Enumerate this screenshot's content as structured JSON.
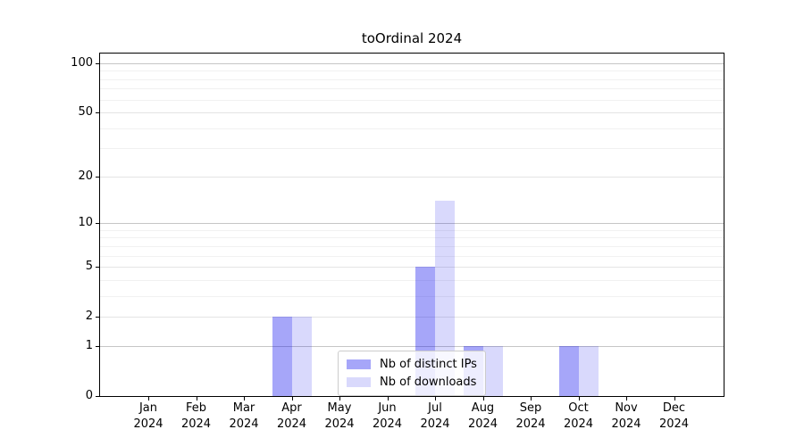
{
  "chart_data": {
    "type": "bar",
    "title": "toOrdinal 2024",
    "categories": [
      "Jan",
      "Feb",
      "Mar",
      "Apr",
      "May",
      "Jun",
      "Jul",
      "Aug",
      "Sep",
      "Oct",
      "Nov",
      "Dec"
    ],
    "year_label": "2024",
    "series": [
      {
        "name": "Nb of distinct IPs",
        "color": "rgba(0,0,238,0.35)",
        "values": [
          0,
          0,
          0,
          2,
          0,
          0,
          5,
          1,
          0,
          1,
          0,
          0
        ]
      },
      {
        "name": "Nb of downloads",
        "color": "rgba(0,0,238,0.15)",
        "values": [
          0,
          0,
          0,
          2,
          0,
          0,
          14,
          1,
          0,
          1,
          0,
          0
        ]
      }
    ],
    "yscale": "log1p",
    "ylim": [
      0,
      100
    ],
    "ytick_labels": [
      0,
      1,
      2,
      5,
      10,
      20,
      50,
      100
    ],
    "gridlines_strong": [
      1,
      10,
      100
    ],
    "gridlines_mid": [
      2,
      5,
      20,
      50
    ],
    "gridlines_minor": [
      3,
      4,
      6,
      7,
      8,
      9,
      30,
      40,
      60,
      70,
      80,
      90
    ],
    "grid": true,
    "legend_position": "bottom-center"
  },
  "colors": {
    "grid_strong": "#c6c6c6",
    "grid_mid": "#e4e4e4",
    "grid_minor": "#f1f1f1",
    "axis": "#000000",
    "legend_border": "#cccccc",
    "legend_background": "rgba(255,255,255,0.8)"
  }
}
